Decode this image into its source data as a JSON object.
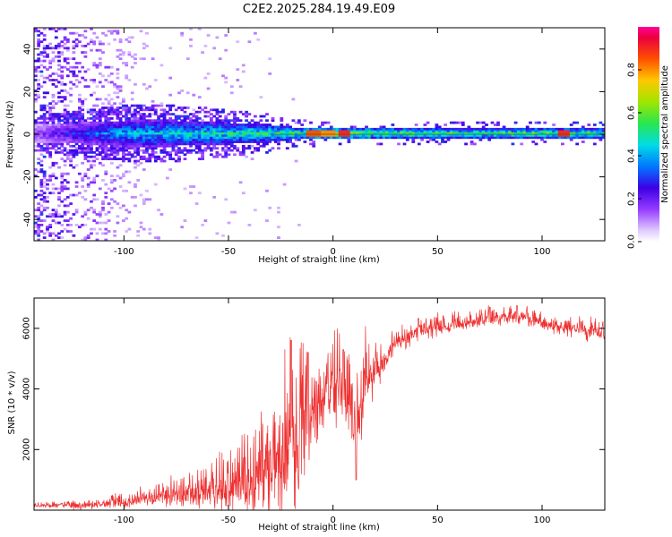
{
  "title": "C2E2.2025.284.19.49.E09",
  "chart_data": [
    {
      "type": "heatmap",
      "xlabel": "Height of straight line (km)",
      "ylabel": "Frequency (Hz)",
      "xlim": [
        -143,
        130
      ],
      "ylim": [
        -50,
        50
      ],
      "xticks": [
        -100,
        -50,
        0,
        50,
        100
      ],
      "yticks": [
        -40,
        -20,
        0,
        20,
        40
      ],
      "colorbar": {
        "label": "Normalized spectral amplitude",
        "range": [
          0,
          1
        ],
        "ticks": [
          "0.0",
          "0.2",
          "0.4",
          "0.6",
          "0.8"
        ],
        "tick_values": [
          0,
          0.2,
          0.4,
          0.6,
          0.8
        ]
      },
      "band_halfwidth_hz": [
        {
          "x": -143,
          "hz": 4
        },
        {
          "x": -120,
          "hz": 5
        },
        {
          "x": -100,
          "hz": 6
        },
        {
          "x": -75,
          "hz": 6
        },
        {
          "x": -50,
          "hz": 5
        },
        {
          "x": -30,
          "hz": 4
        },
        {
          "x": -20,
          "hz": 3
        },
        {
          "x": 0,
          "hz": 2.5
        },
        {
          "x": 40,
          "hz": 2.5
        },
        {
          "x": 100,
          "hz": 2.5
        },
        {
          "x": 130,
          "hz": 2.5
        }
      ],
      "band_peak_amplitude": [
        {
          "x": -143,
          "a": 0.15
        },
        {
          "x": -120,
          "a": 0.3
        },
        {
          "x": -100,
          "a": 0.4
        },
        {
          "x": -60,
          "a": 0.45
        },
        {
          "x": -30,
          "a": 0.5
        },
        {
          "x": -10,
          "a": 0.55
        },
        {
          "x": 0,
          "a": 0.65
        },
        {
          "x": 20,
          "a": 0.55
        },
        {
          "x": 60,
          "a": 0.5
        },
        {
          "x": 100,
          "a": 0.55
        },
        {
          "x": 130,
          "a": 0.5
        }
      ],
      "hot_spots": [
        {
          "x": -10,
          "y": 0,
          "a": 0.85
        },
        {
          "x": 5,
          "y": 0,
          "a": 0.9
        },
        {
          "x": -3,
          "y": 0,
          "a": 0.8
        },
        {
          "x": 110,
          "y": 0,
          "a": 0.9
        }
      ]
    },
    {
      "type": "line",
      "xlabel": "Height of straight line (km)",
      "ylabel": "SNR (10 * v/v)",
      "xlim": [
        -143,
        130
      ],
      "ylim": [
        0,
        7000
      ],
      "xticks": [
        -100,
        -50,
        0,
        50,
        100
      ],
      "yticks": [
        2000,
        4000,
        6000
      ],
      "series": [
        {
          "color": "#ee3030",
          "baseline": [
            {
              "x": -143,
              "y": 150
            },
            {
              "x": -120,
              "y": 150
            },
            {
              "x": -100,
              "y": 300
            },
            {
              "x": -80,
              "y": 450
            },
            {
              "x": -60,
              "y": 600
            },
            {
              "x": -45,
              "y": 800
            },
            {
              "x": -35,
              "y": 1200
            },
            {
              "x": -28,
              "y": 1800
            },
            {
              "x": -22,
              "y": 2400
            },
            {
              "x": -15,
              "y": 2800
            },
            {
              "x": -8,
              "y": 3400
            },
            {
              "x": -3,
              "y": 3800
            },
            {
              "x": 2,
              "y": 3900
            },
            {
              "x": 8,
              "y": 3600
            },
            {
              "x": 11,
              "y": 2600
            },
            {
              "x": 15,
              "y": 4200
            },
            {
              "x": 22,
              "y": 4700
            },
            {
              "x": 30,
              "y": 5500
            },
            {
              "x": 40,
              "y": 5900
            },
            {
              "x": 60,
              "y": 6150
            },
            {
              "x": 80,
              "y": 6350
            },
            {
              "x": 90,
              "y": 6400
            },
            {
              "x": 100,
              "y": 6150
            },
            {
              "x": 115,
              "y": 6000
            },
            {
              "x": 130,
              "y": 5800
            }
          ],
          "noise": [
            {
              "x": -143,
              "n": 150
            },
            {
              "x": -110,
              "n": 200
            },
            {
              "x": -80,
              "n": 500
            },
            {
              "x": -60,
              "n": 900
            },
            {
              "x": -45,
              "n": 1400
            },
            {
              "x": -35,
              "n": 2000
            },
            {
              "x": -25,
              "n": 3000
            },
            {
              "x": -15,
              "n": 3200
            },
            {
              "x": -5,
              "n": 1500
            },
            {
              "x": 5,
              "n": 1800
            },
            {
              "x": 12,
              "n": 2000
            },
            {
              "x": 20,
              "n": 900
            },
            {
              "x": 30,
              "n": 500
            },
            {
              "x": 60,
              "n": 400
            },
            {
              "x": 100,
              "n": 400
            },
            {
              "x": 130,
              "n": 400
            }
          ],
          "peaks": [
            {
              "x": -20,
              "y": 5600
            },
            {
              "x": -12,
              "y": 5200
            },
            {
              "x": 5,
              "y": 5300
            },
            {
              "x": 11,
              "y": 1000
            },
            {
              "x": 88,
              "y": 6750
            },
            {
              "x": 75,
              "y": 6700
            }
          ]
        }
      ]
    }
  ]
}
